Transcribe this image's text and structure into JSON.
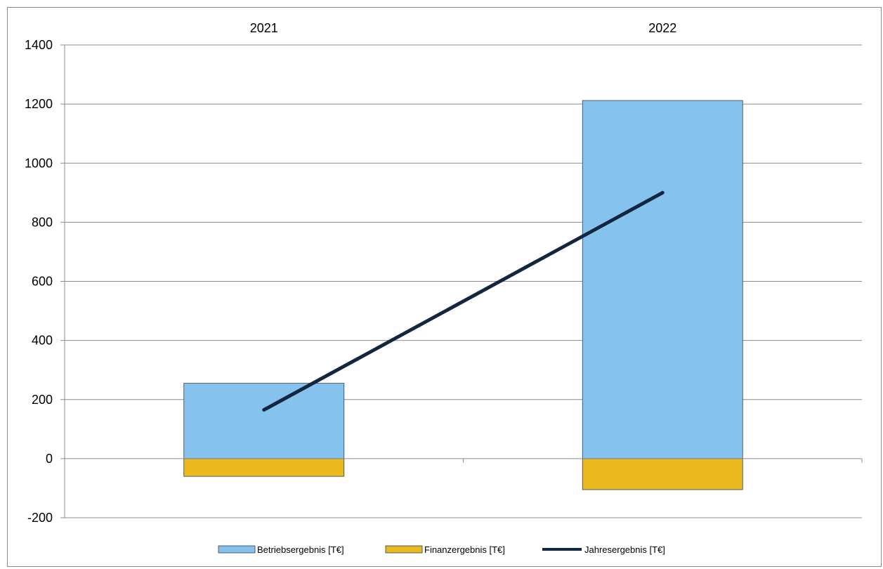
{
  "chart_data": {
    "type": "bar",
    "stacked": true,
    "categories": [
      "2021",
      "2022"
    ],
    "category_axis_position": "top",
    "series": [
      {
        "name": "Betriebsergebnis [T€]",
        "kind": "bar",
        "color": "#85C3EE",
        "values": [
          255,
          1212
        ]
      },
      {
        "name": "Finanzergebnis [T€]",
        "kind": "bar",
        "color": "#EAB91E",
        "values": [
          -60,
          -105
        ]
      },
      {
        "name": "Jahresergebnis [T€]",
        "kind": "line",
        "color": "#12263F",
        "values": [
          165,
          900
        ]
      }
    ],
    "ylim": [
      -200,
      1400
    ],
    "yticks": [
      1400,
      1200,
      1000,
      800,
      600,
      400,
      200,
      0,
      -200
    ],
    "grid": true,
    "legend_position": "bottom"
  }
}
